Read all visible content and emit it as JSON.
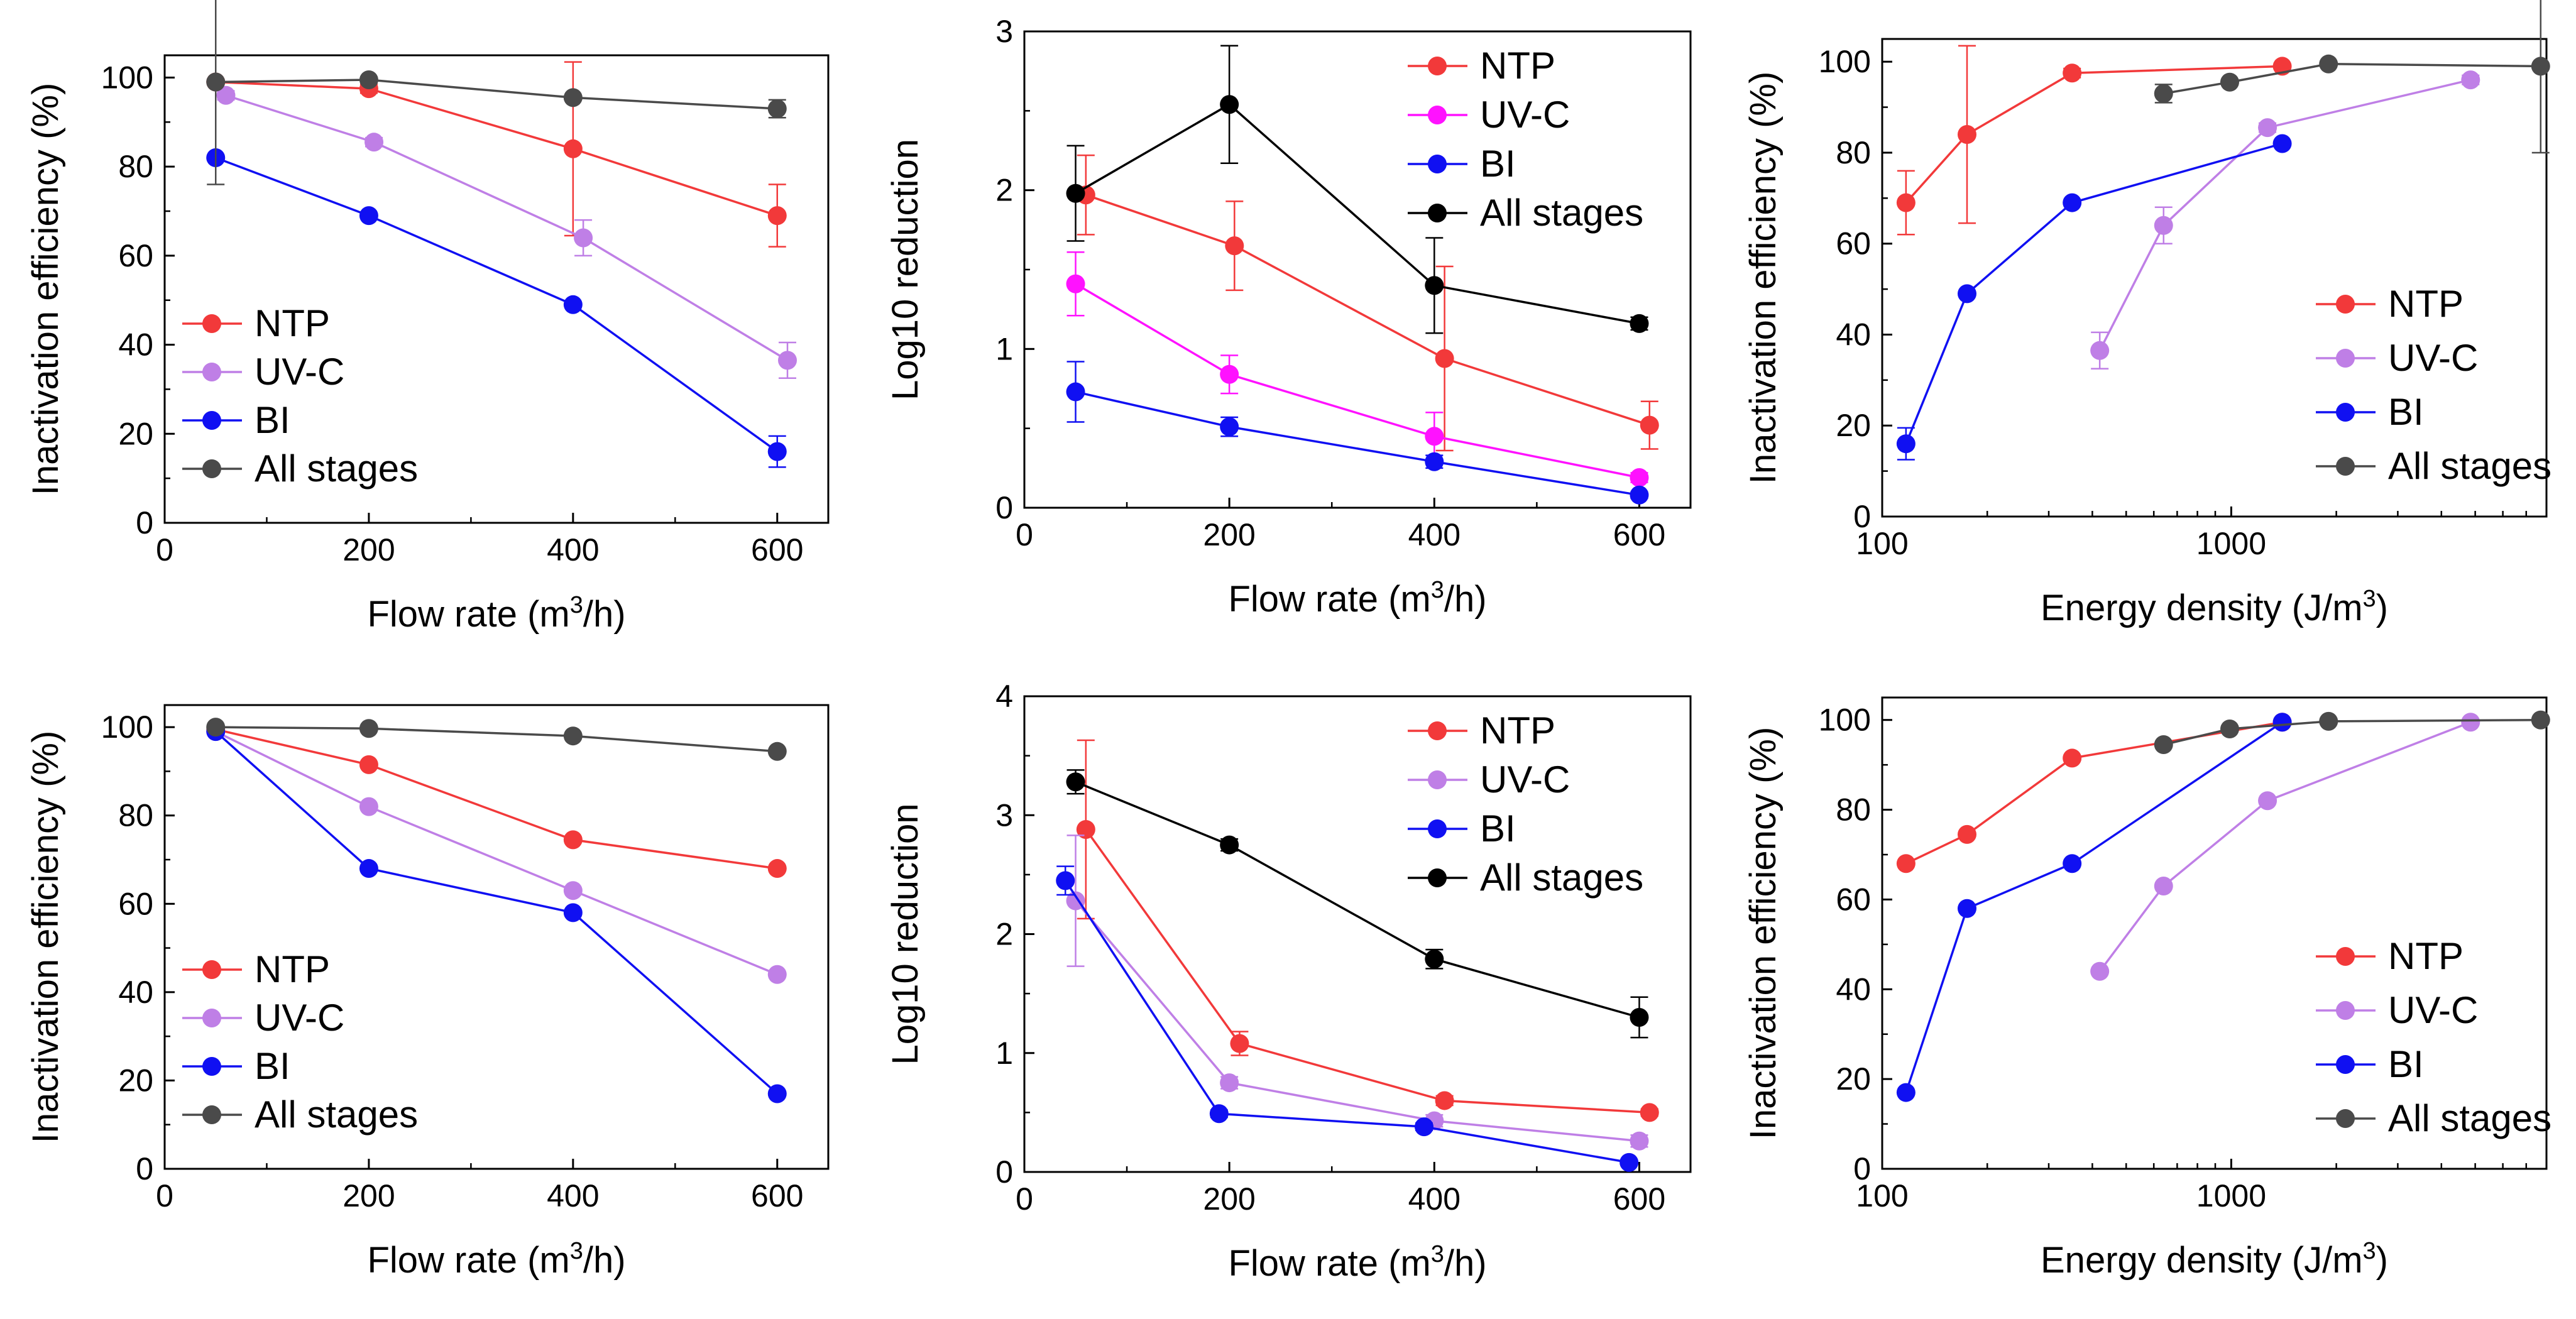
{
  "colors": {
    "ntp": "#f2393a",
    "uvc_a": "#bf7fe6",
    "uvc_b": "#ff12ff",
    "bi": "#1010f2",
    "all": "#4a4a4a",
    "all_b": "#000000"
  },
  "chart_data": [
    {
      "id": "p1",
      "type": "line",
      "xscale": "linear",
      "xlim": [
        0,
        650
      ],
      "ylim": [
        0,
        105
      ],
      "xticks": [
        0,
        200,
        400,
        600
      ],
      "xtick_labels": [
        "0",
        "200",
        "400",
        "600"
      ],
      "yticks": [
        0,
        20,
        40,
        60,
        80,
        100
      ],
      "ytick_labels": [
        "0",
        "20",
        "40",
        "60",
        "80",
        "100"
      ],
      "xlabel": "Flow rate (m³/h)",
      "xlabel_main": "Flow rate (m",
      "xlabel_sup": "3",
      "xlabel_tail": "/h)",
      "ylabel": "Inactivation efficiency (%)",
      "legend_position": "lower-left",
      "series": [
        {
          "name": "NTP",
          "color_key": "ntp",
          "x": [
            50,
            200,
            400,
            600
          ],
          "y": [
            99,
            97.5,
            84,
            69
          ],
          "err": [
            0.5,
            1,
            19.5,
            7
          ]
        },
        {
          "name": "UV-C",
          "color_key": "uvc_a",
          "x": [
            60,
            205,
            410,
            610
          ],
          "y": [
            96,
            85.5,
            64,
            36.5
          ],
          "err": [
            1,
            1,
            4,
            4
          ]
        },
        {
          "name": "BI",
          "color_key": "bi",
          "x": [
            50,
            200,
            400,
            600
          ],
          "y": [
            82,
            69,
            49,
            16
          ],
          "err": [
            0,
            0,
            0,
            3.5
          ]
        },
        {
          "name": "All stages",
          "color_key": "all",
          "x": [
            50,
            200,
            400,
            600
          ],
          "y": [
            99,
            99.5,
            95.5,
            93
          ],
          "err": [
            23,
            0,
            0,
            2
          ]
        }
      ]
    },
    {
      "id": "p2",
      "type": "line",
      "xscale": "linear",
      "xlim": [
        0,
        650
      ],
      "ylim": [
        0,
        3
      ],
      "xticks": [
        0,
        200,
        400,
        600
      ],
      "xtick_labels": [
        "0",
        "200",
        "400",
        "600"
      ],
      "yticks": [
        0,
        1,
        2,
        3
      ],
      "ytick_labels": [
        "0",
        "1",
        "2",
        "3"
      ],
      "xlabel": "Flow rate (m³/h)",
      "xlabel_main": "Flow rate (m",
      "xlabel_sup": "3",
      "xlabel_tail": "/h)",
      "ylabel": "Log10 reduction",
      "legend_position": "top-right",
      "series": [
        {
          "name": "NTP",
          "color_key": "ntp",
          "x": [
            60,
            205,
            410,
            610
          ],
          "y": [
            1.97,
            1.65,
            0.94,
            0.52
          ],
          "err": [
            0.25,
            0.28,
            0.58,
            0.15
          ]
        },
        {
          "name": "UV-C",
          "color_key": "uvc_b",
          "x": [
            50,
            200,
            400,
            600
          ],
          "y": [
            1.41,
            0.84,
            0.45,
            0.19
          ],
          "err": [
            0.2,
            0.12,
            0.15,
            0.03
          ]
        },
        {
          "name": "BI",
          "color_key": "bi",
          "x": [
            50,
            200,
            400,
            600
          ],
          "y": [
            0.73,
            0.51,
            0.29,
            0.08
          ],
          "err": [
            0.19,
            0.06,
            0.04,
            0.02
          ]
        },
        {
          "name": "All stages",
          "color_key": "all_b",
          "x": [
            50,
            200,
            400,
            600
          ],
          "y": [
            1.98,
            2.54,
            1.4,
            1.16
          ],
          "err": [
            0.3,
            0.37,
            0.3,
            0.04
          ]
        }
      ]
    },
    {
      "id": "p3",
      "type": "line",
      "xscale": "log",
      "xlim": [
        100,
        8000
      ],
      "ylim": [
        0,
        105
      ],
      "xticks": [
        100,
        1000
      ],
      "xtick_labels": [
        "100",
        "1000"
      ],
      "yticks": [
        0,
        20,
        40,
        60,
        80,
        100
      ],
      "ytick_labels": [
        "0",
        "20",
        "40",
        "60",
        "80",
        "100"
      ],
      "xlabel": "Energy density (J/m³)",
      "xlabel_main": "Energy density (J/m",
      "xlabel_sup": "3",
      "xlabel_tail": ")",
      "ylabel": "Inactivation efficiency (%)",
      "legend_position": "lower-right",
      "series": [
        {
          "name": "NTP",
          "color_key": "ntp",
          "x": [
            117,
            175,
            350,
            1400
          ],
          "y": [
            69,
            84,
            97.5,
            99
          ],
          "err": [
            7,
            19.5,
            1,
            0.5
          ]
        },
        {
          "name": "UV-C",
          "color_key": "uvc_a",
          "x": [
            420,
            640,
            1270,
            4850
          ],
          "y": [
            36.5,
            64,
            85.5,
            96
          ],
          "err": [
            4,
            4,
            1,
            1
          ]
        },
        {
          "name": "BI",
          "color_key": "bi",
          "x": [
            117,
            175,
            350,
            1400
          ],
          "y": [
            16,
            49,
            69,
            82
          ],
          "err": [
            3.5,
            0,
            0,
            0
          ]
        },
        {
          "name": "All stages",
          "color_key": "all",
          "x": [
            640,
            990,
            1900,
            7700
          ],
          "y": [
            93,
            95.5,
            99.5,
            99
          ],
          "err": [
            2,
            0,
            0,
            19
          ]
        }
      ]
    },
    {
      "id": "p4",
      "type": "line",
      "xscale": "linear",
      "xlim": [
        0,
        650
      ],
      "ylim": [
        0,
        105
      ],
      "xticks": [
        0,
        200,
        400,
        600
      ],
      "xtick_labels": [
        "0",
        "200",
        "400",
        "600"
      ],
      "yticks": [
        0,
        20,
        40,
        60,
        80,
        100
      ],
      "ytick_labels": [
        "0",
        "20",
        "40",
        "60",
        "80",
        "100"
      ],
      "xlabel": "Flow rate (m³/h)",
      "xlabel_main": "Flow rate (m",
      "xlabel_sup": "3",
      "xlabel_tail": "/h)",
      "ylabel": "Inactivation efficiency (%)",
      "legend_position": "lower-left",
      "series": [
        {
          "name": "NTP",
          "color_key": "ntp",
          "x": [
            50,
            200,
            400,
            600
          ],
          "y": [
            99.5,
            91.5,
            74.5,
            68
          ],
          "err": [
            0,
            0,
            0,
            0
          ]
        },
        {
          "name": "UV-C",
          "color_key": "uvc_a",
          "x": [
            50,
            200,
            400,
            600
          ],
          "y": [
            99,
            82,
            63,
            44
          ],
          "err": [
            0,
            0,
            0,
            0
          ]
        },
        {
          "name": "BI",
          "color_key": "bi",
          "x": [
            50,
            200,
            400,
            600
          ],
          "y": [
            99,
            68,
            58,
            17
          ],
          "err": [
            0,
            0,
            0,
            0
          ]
        },
        {
          "name": "All stages",
          "color_key": "all",
          "x": [
            50,
            200,
            400,
            600
          ],
          "y": [
            100,
            99.7,
            98,
            94.5
          ],
          "err": [
            0,
            0,
            0,
            0
          ]
        }
      ]
    },
    {
      "id": "p5",
      "type": "line",
      "xscale": "linear",
      "xlim": [
        0,
        650
      ],
      "ylim": [
        0,
        4
      ],
      "xticks": [
        0,
        200,
        400,
        600
      ],
      "xtick_labels": [
        "0",
        "200",
        "400",
        "600"
      ],
      "yticks": [
        0,
        1,
        2,
        3,
        4
      ],
      "ytick_labels": [
        "0",
        "1",
        "2",
        "3",
        "4"
      ],
      "xlabel": "Flow rate (m³/h)",
      "xlabel_main": "Flow rate (m",
      "xlabel_sup": "3",
      "xlabel_tail": "/h)",
      "ylabel": "Log10 reduction",
      "legend_position": "top-right",
      "series": [
        {
          "name": "NTP",
          "color_key": "ntp",
          "x": [
            60,
            210,
            410,
            610
          ],
          "y": [
            2.88,
            1.08,
            0.6,
            0.5
          ],
          "err": [
            0.75,
            0.1,
            0.04,
            0.03
          ]
        },
        {
          "name": "UV-C",
          "color_key": "uvc_a",
          "x": [
            50,
            200,
            400,
            600
          ],
          "y": [
            2.28,
            0.75,
            0.43,
            0.26
          ],
          "err": [
            0.55,
            0.05,
            0.05,
            0.05
          ]
        },
        {
          "name": "BI",
          "color_key": "bi",
          "x": [
            40,
            190,
            390,
            590
          ],
          "y": [
            2.45,
            0.49,
            0.38,
            0.08
          ],
          "err": [
            0.12,
            0.03,
            0.03,
            0.02
          ]
        },
        {
          "name": "All stages",
          "color_key": "all_b",
          "x": [
            50,
            200,
            400,
            600
          ],
          "y": [
            3.28,
            2.75,
            1.79,
            1.3
          ],
          "err": [
            0.1,
            0.05,
            0.08,
            0.17
          ]
        }
      ]
    },
    {
      "id": "p6",
      "type": "line",
      "xscale": "log",
      "xlim": [
        100,
        8000
      ],
      "ylim": [
        0,
        105
      ],
      "xticks": [
        100,
        1000
      ],
      "xtick_labels": [
        "100",
        "1000"
      ],
      "yticks": [
        0,
        20,
        40,
        60,
        80,
        100
      ],
      "ytick_labels": [
        "0",
        "20",
        "40",
        "60",
        "80",
        "100"
      ],
      "xlabel": "Energy density (J/m³)",
      "xlabel_main": "Energy density (J/m",
      "xlabel_sup": "3",
      "xlabel_tail": ")",
      "ylabel": "Inactivation efficiency (%)",
      "legend_position": "lower-right",
      "series": [
        {
          "name": "NTP",
          "color_key": "ntp",
          "x": [
            117,
            175,
            350,
            1400
          ],
          "y": [
            68,
            74.5,
            91.5,
            99.5
          ],
          "err": [
            0,
            0,
            0,
            0
          ]
        },
        {
          "name": "UV-C",
          "color_key": "uvc_a",
          "x": [
            420,
            640,
            1270,
            4850
          ],
          "y": [
            44,
            63,
            82,
            99.5
          ],
          "err": [
            0,
            0,
            0,
            0
          ]
        },
        {
          "name": "BI",
          "color_key": "bi",
          "x": [
            117,
            175,
            350,
            1400
          ],
          "y": [
            17,
            58,
            68,
            99.5
          ],
          "err": [
            0,
            0,
            0,
            0
          ]
        },
        {
          "name": "All stages",
          "color_key": "all",
          "x": [
            640,
            990,
            1900,
            7700
          ],
          "y": [
            94.5,
            98,
            99.7,
            100
          ],
          "err": [
            0,
            0,
            0,
            0
          ]
        }
      ]
    }
  ]
}
